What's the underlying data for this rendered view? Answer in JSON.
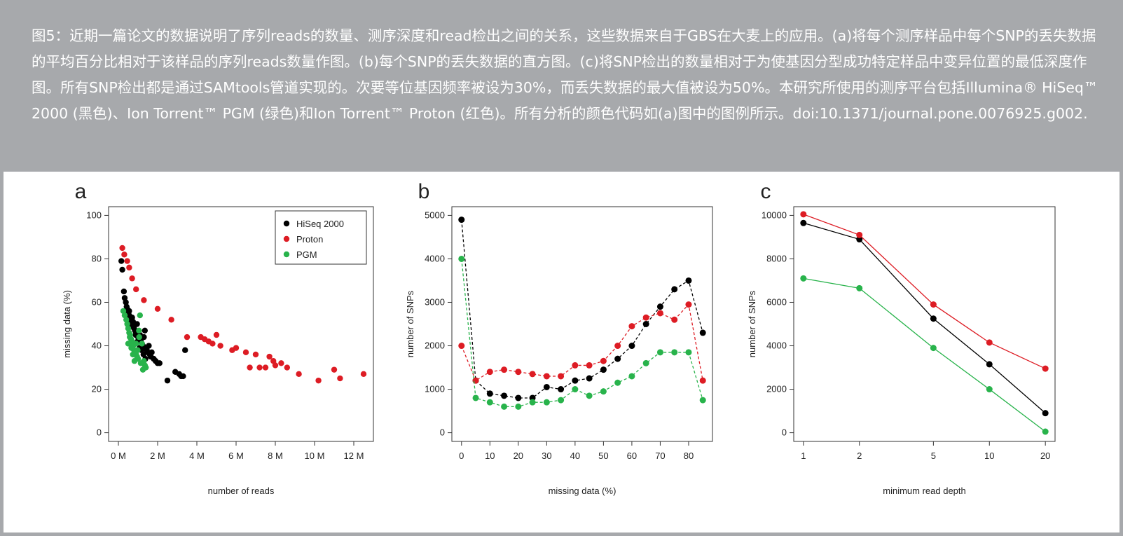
{
  "caption": {
    "text": "图5：近期一篇论文的数据说明了序列reads的数量、测序深度和read检出之间的关系，这些数据来自于GBS在大麦上的应用。(a)将每个测序样品中每个SNP的丢失数据的平均百分比相对于该样品的序列reads数量作图。(b)每个SNP的丢失数据的直方图。(c)将SNP检出的数量相对于为使基因分型成功特定样品中变异位置的最低深度作图。所有SNP检出都是通过SAMtools管道实现的。次要等位基因频率被设为30%，而丢失数据的最大值被设为50%。本研究所使用的测序平台包括Illumina® HiSeq™ 2000 (黑色)、Ion Torrent™ PGM (绿色)和Ion Torrent™ Proton (红色)。所有分析的颜色代码如(a)图中的图例所示。doi:10.1371/journal.pone.0076925.g002."
  },
  "colors": {
    "caption_bg": "#a7a9ac",
    "hiseq": "#000000",
    "proton": "#dd1c24",
    "pgm": "#28b34b"
  },
  "chart_data": [
    {
      "type": "scatter",
      "panel_label": "a",
      "xlabel": "number of reads",
      "ylabel": "missing data (%)",
      "xlim": [
        0,
        12500000
      ],
      "ylim": [
        0,
        100
      ],
      "x_ticks": [
        0,
        2000000,
        4000000,
        6000000,
        8000000,
        10000000,
        12000000
      ],
      "x_tick_labels": [
        "0 M",
        "2 M",
        "4 M",
        "6 M",
        "8 M",
        "10 M",
        "12 M"
      ],
      "y_ticks": [
        0,
        20,
        40,
        60,
        80,
        100
      ],
      "y_tick_labels": [
        "0",
        "20",
        "40",
        "60",
        "80",
        "100"
      ],
      "legend_position": "top-right",
      "series": [
        {
          "name": "HiSeq 2000",
          "color_key": "hiseq",
          "x": [
            0.15,
            0.2,
            0.28,
            0.32,
            0.38,
            0.42,
            0.45,
            0.5,
            0.55,
            0.6,
            0.62,
            0.68,
            0.7,
            0.75,
            0.8,
            0.85,
            0.9,
            0.95,
            1.0,
            1.05,
            1.1,
            1.15,
            1.2,
            1.25,
            1.3,
            1.35,
            1.4,
            1.45,
            1.5,
            1.55,
            1.6,
            1.65,
            1.7,
            1.8,
            1.9,
            2.0,
            2.1,
            2.5,
            2.9,
            3.1,
            3.2,
            3.3,
            3.4,
            0.55,
            0.65,
            0.78,
            0.88,
            0.98,
            1.08,
            1.18,
            1.28,
            1.38
          ],
          "y": [
            79,
            75,
            65,
            62,
            60,
            58,
            57,
            55,
            54,
            52,
            50,
            49,
            53,
            51,
            48,
            47,
            46,
            50,
            44,
            43,
            45,
            42,
            41,
            40,
            44,
            47,
            39,
            38,
            37,
            40,
            36,
            35,
            37,
            34,
            33,
            32,
            32,
            24,
            28,
            27,
            26,
            26,
            38,
            56,
            53,
            49,
            45,
            42,
            39,
            38,
            36,
            34
          ]
        },
        {
          "name": "Proton",
          "color_key": "proton",
          "x": [
            0.2,
            0.3,
            0.45,
            0.55,
            0.7,
            0.9,
            1.3,
            2.0,
            2.7,
            3.5,
            4.2,
            4.4,
            4.6,
            4.8,
            5.0,
            5.2,
            5.8,
            6.0,
            6.5,
            6.7,
            7.0,
            7.2,
            7.5,
            7.7,
            7.9,
            8.0,
            8.3,
            8.6,
            9.2,
            10.2,
            11.0,
            11.3,
            12.5
          ],
          "y": [
            85,
            82,
            79,
            76,
            71,
            66,
            61,
            57,
            52,
            44,
            44,
            43,
            42,
            41,
            45,
            40,
            38,
            39,
            37,
            30,
            36,
            30,
            30,
            35,
            33,
            31,
            32,
            30,
            27,
            24,
            29,
            25,
            27
          ]
        },
        {
          "name": "PGM",
          "color_key": "pgm",
          "x": [
            0.25,
            0.32,
            0.4,
            0.45,
            0.5,
            0.55,
            0.6,
            0.65,
            0.7,
            0.75,
            0.8,
            0.85,
            0.9,
            0.95,
            1.0,
            1.05,
            1.1,
            1.2,
            1.3,
            1.35,
            1.4,
            0.5,
            0.58,
            0.66,
            0.74,
            0.82,
            0.9,
            0.98,
            1.06,
            1.14,
            1.25
          ],
          "y": [
            56,
            54,
            52,
            50,
            48,
            46,
            45,
            43,
            42,
            40,
            38,
            37,
            36,
            35,
            34,
            47,
            54,
            41,
            33,
            31,
            30,
            41,
            44,
            39,
            36,
            33,
            41,
            38,
            44,
            32,
            29
          ]
        }
      ]
    },
    {
      "type": "line",
      "panel_label": "b",
      "xlabel": "missing data (%)",
      "ylabel": "number of SNPs",
      "xlim": [
        0,
        85
      ],
      "ylim": [
        0,
        5000
      ],
      "x_ticks": [
        0,
        10,
        20,
        30,
        40,
        50,
        60,
        70,
        80
      ],
      "x_tick_labels": [
        "0",
        "10",
        "20",
        "30",
        "40",
        "50",
        "60",
        "70",
        "80"
      ],
      "y_ticks": [
        0,
        1000,
        2000,
        3000,
        4000,
        5000
      ],
      "y_tick_labels": [
        "0",
        "1000",
        "2000",
        "3000",
        "4000",
        "5000"
      ],
      "series": [
        {
          "name": "HiSeq 2000",
          "color_key": "hiseq",
          "x": [
            0,
            5,
            10,
            15,
            20,
            25,
            30,
            35,
            40,
            45,
            50,
            55,
            60,
            65,
            70,
            75,
            80,
            85
          ],
          "y": [
            4900,
            1200,
            900,
            850,
            800,
            800,
            1050,
            1000,
            1200,
            1250,
            1450,
            1700,
            2000,
            2500,
            2900,
            3300,
            3500,
            2300
          ]
        },
        {
          "name": "Proton",
          "color_key": "proton",
          "x": [
            0,
            5,
            10,
            15,
            20,
            25,
            30,
            35,
            40,
            45,
            50,
            55,
            60,
            65,
            70,
            75,
            80,
            85
          ],
          "y": [
            2000,
            1200,
            1400,
            1450,
            1400,
            1350,
            1300,
            1300,
            1550,
            1550,
            1650,
            2000,
            2450,
            2650,
            2750,
            2600,
            2950,
            1200
          ]
        },
        {
          "name": "PGM",
          "color_key": "pgm",
          "x": [
            0,
            5,
            10,
            15,
            20,
            25,
            30,
            35,
            40,
            45,
            50,
            55,
            60,
            65,
            70,
            75,
            80,
            85
          ],
          "y": [
            4000,
            800,
            700,
            600,
            600,
            700,
            700,
            750,
            1000,
            850,
            950,
            1150,
            1300,
            1600,
            1850,
            1850,
            1850,
            750
          ]
        }
      ]
    },
    {
      "type": "line",
      "panel_label": "c",
      "xlabel": "minimum read depth",
      "ylabel": "number of SNPs",
      "x_scale": "log",
      "categories": [
        "1",
        "2",
        "5",
        "10",
        "20"
      ],
      "x": [
        1,
        2,
        5,
        10,
        20
      ],
      "ylim": [
        0,
        10000
      ],
      "y_ticks": [
        0,
        2000,
        4000,
        6000,
        8000,
        10000
      ],
      "y_tick_labels": [
        "0",
        "2000",
        "4000",
        "6000",
        "8000",
        "10000"
      ],
      "series": [
        {
          "name": "HiSeq 2000",
          "color_key": "hiseq",
          "values": [
            9650,
            8900,
            5250,
            3150,
            900
          ]
        },
        {
          "name": "Proton",
          "color_key": "proton",
          "values": [
            10050,
            9100,
            5900,
            4150,
            2950
          ]
        },
        {
          "name": "PGM",
          "color_key": "pgm",
          "values": [
            7100,
            6650,
            3900,
            2000,
            50
          ]
        }
      ]
    }
  ]
}
